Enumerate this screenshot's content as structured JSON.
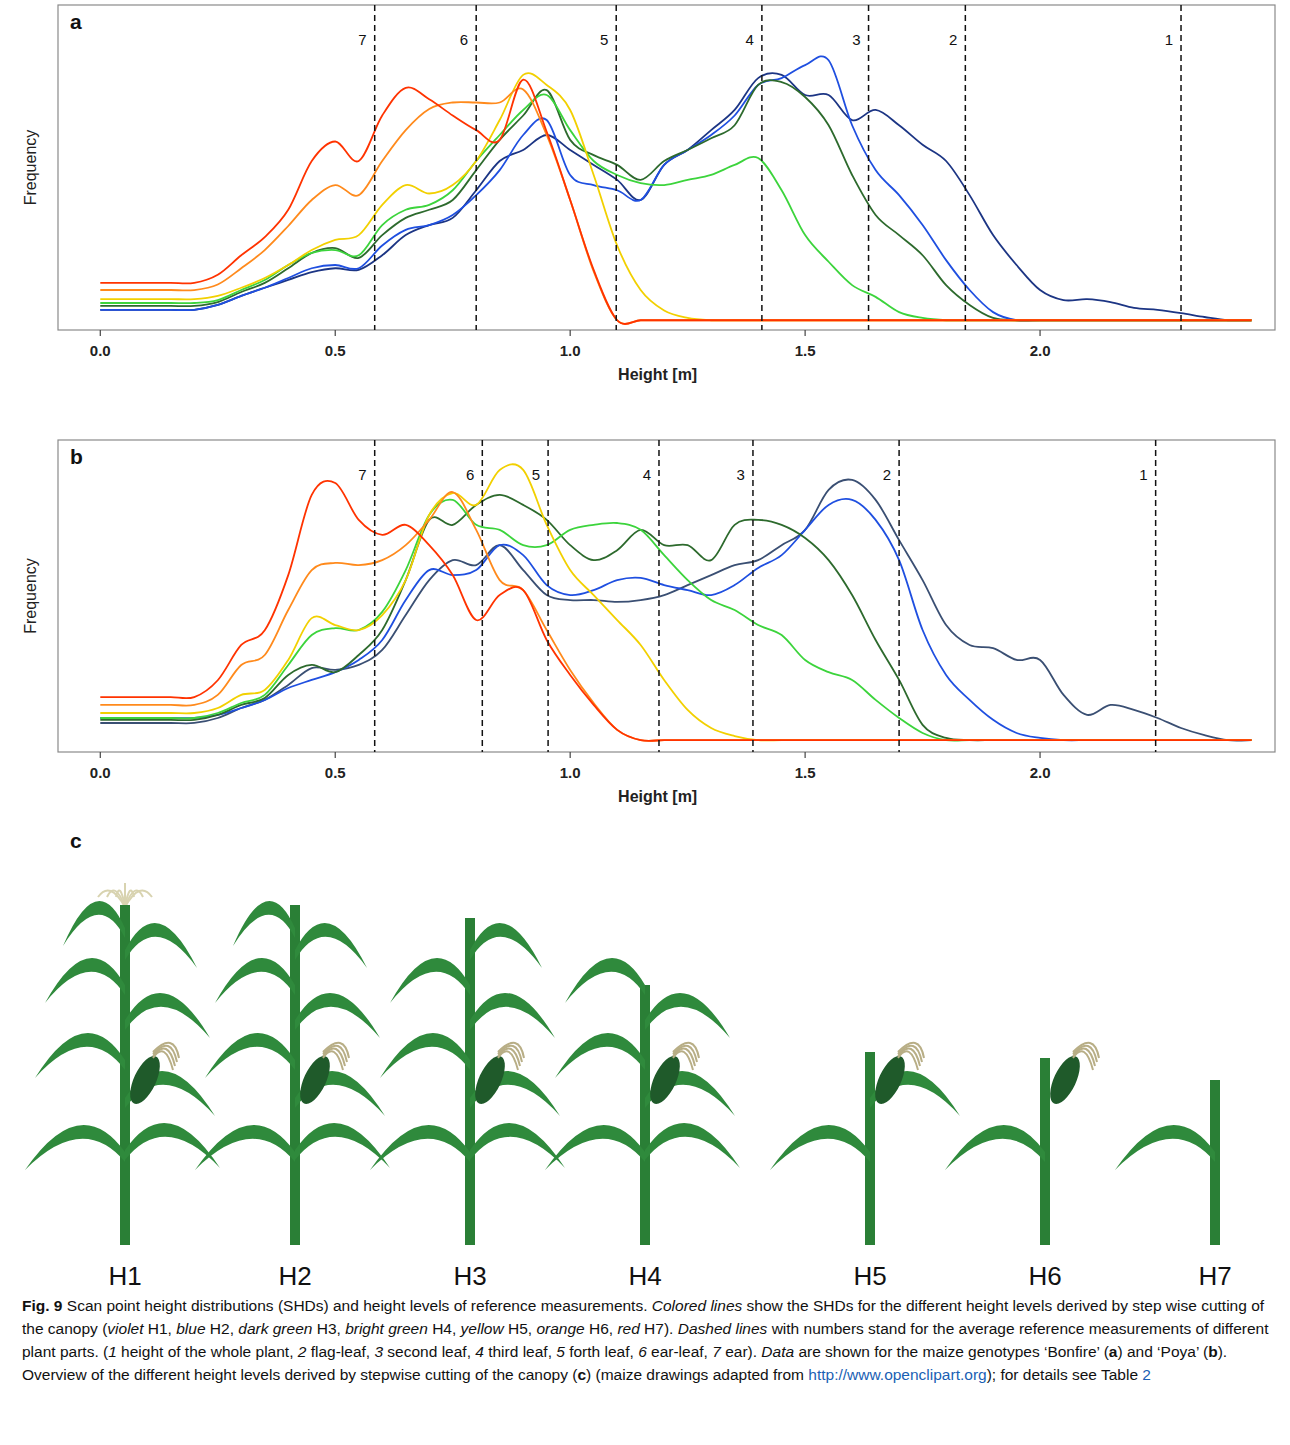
{
  "chart_data": [
    {
      "type": "line",
      "panel_label": "a",
      "x_label": "Height [m]",
      "y_label": "Frequency",
      "xlim": [
        -0.09,
        2.5
      ],
      "ylim": [
        0,
        100
      ],
      "tick_labels": "x",
      "xticks": [
        {
          "value": 0,
          "label": "0.0"
        },
        0.5,
        {
          "value": 1,
          "label": "1.0"
        },
        1.5,
        {
          "value": 2,
          "label": "2.0"
        }
      ],
      "x": [
        0,
        0.05,
        0.1,
        0.15,
        0.2,
        0.25,
        0.3,
        0.35,
        0.4,
        0.45,
        0.5,
        0.55,
        0.6,
        0.65,
        0.7,
        0.75,
        0.8,
        0.85,
        0.9,
        0.95,
        1,
        1.05,
        1.1,
        1.15,
        1.2,
        1.25,
        1.3,
        1.35,
        1.4,
        1.45,
        1.5,
        1.55,
        1.6,
        1.65,
        1.7,
        1.75,
        1.8,
        1.85,
        1.9,
        1.95,
        2,
        2.05,
        2.1,
        2.15,
        2.2,
        2.25,
        2.3,
        2.35,
        2.4,
        2.45
      ],
      "series": [
        {
          "color": "#1c3584",
          "values": [
            6.2,
            6.2,
            6.2,
            6.2,
            6.2,
            7.7,
            10.5,
            13,
            15.4,
            17.8,
            19,
            18.5,
            23,
            29.2,
            32.3,
            34.5,
            43,
            52,
            55.4,
            60,
            55.4,
            50.8,
            46.2,
            40,
            50.8,
            55.4,
            61.5,
            67.7,
            77.5,
            78.5,
            72.3,
            72.3,
            64.6,
            67.7,
            63,
            57,
            52,
            41.5,
            29.2,
            20,
            12.3,
            9.2,
            9.5,
            8.6,
            6.8,
            6.2,
            5.2,
            4,
            3,
            3
          ]
        },
        {
          "color": "#1f4fe0",
          "values": [
            6.2,
            6.2,
            6.2,
            6.2,
            6.2,
            7.7,
            10.5,
            13,
            16,
            19,
            20,
            19,
            26,
            30.8,
            32.3,
            35.4,
            41.5,
            49.2,
            60,
            64.6,
            47.7,
            44.6,
            43,
            40,
            50.8,
            55.4,
            60,
            66,
            75.4,
            77.5,
            81.5,
            83,
            63,
            49.2,
            41.5,
            32.3,
            21.5,
            12.3,
            5.5,
            3,
            3,
            3,
            3,
            3,
            3,
            3,
            3,
            3,
            3,
            3
          ]
        },
        {
          "color": "#2d6a2d",
          "values": [
            7.4,
            7.4,
            7.4,
            7.4,
            7.4,
            8.6,
            11.7,
            14.5,
            19,
            23.7,
            25.2,
            22.2,
            29.2,
            34.5,
            37,
            40,
            49.2,
            58.5,
            66,
            73.8,
            58.5,
            53.8,
            50.8,
            46.2,
            52,
            55.4,
            59,
            63,
            75.4,
            76.3,
            71.7,
            63,
            47.7,
            35.4,
            29.2,
            23,
            13.8,
            7.7,
            3.7,
            3,
            3,
            3,
            3,
            3,
            3,
            3,
            3,
            3,
            3,
            3
          ]
        },
        {
          "color": "#3cd43c",
          "values": [
            8.3,
            8.3,
            8.3,
            8.3,
            8.3,
            9.2,
            12.3,
            15.4,
            20,
            23.7,
            24.6,
            23,
            32.3,
            37,
            38.5,
            43,
            52,
            60,
            67.7,
            72.3,
            61.5,
            52,
            47.7,
            45.2,
            44.6,
            46.2,
            47.7,
            50.8,
            52.9,
            43,
            29.2,
            21,
            13.8,
            10.2,
            5.5,
            3.7,
            3,
            3,
            3,
            3,
            3,
            3,
            3,
            3,
            3,
            3,
            3,
            3,
            3,
            3
          ]
        },
        {
          "color": "#f2d000",
          "values": [
            9.5,
            9.5,
            9.5,
            9.5,
            9.5,
            10.5,
            13,
            16,
            20,
            24.6,
            27.7,
            29.2,
            38.5,
            44.6,
            42,
            44.6,
            52,
            64.6,
            78.5,
            75.4,
            67.7,
            47.7,
            26,
            12.3,
            6,
            3.7,
            3,
            3,
            3,
            3,
            3,
            3,
            3,
            3,
            3,
            3,
            3,
            3,
            3,
            3,
            3,
            3,
            3,
            3,
            3,
            3,
            3,
            3,
            3,
            3
          ]
        },
        {
          "color": "#ff8a1c",
          "values": [
            12.3,
            12.3,
            12.3,
            12.3,
            12.3,
            14,
            19,
            24.6,
            32,
            40,
            44.6,
            41.5,
            52,
            61.5,
            68,
            70,
            70,
            70,
            74,
            60,
            40,
            18,
            3,
            3,
            3,
            3,
            3,
            3,
            3,
            3,
            3,
            3,
            3,
            3,
            3,
            3,
            3,
            3,
            3,
            3,
            3,
            3,
            3,
            3,
            3,
            3,
            3,
            3,
            3,
            3
          ]
        },
        {
          "color": "#ff3300",
          "values": [
            14.5,
            14.5,
            14.5,
            14.5,
            14.5,
            17,
            23,
            28.6,
            37,
            52,
            58,
            52,
            66,
            74.5,
            71,
            66,
            61.5,
            58.5,
            77,
            61,
            40,
            18.5,
            3,
            3,
            3,
            3,
            3,
            3,
            3,
            3,
            3,
            3,
            3,
            3,
            3,
            3,
            3,
            3,
            3,
            3,
            3,
            3,
            3,
            3,
            3,
            3,
            3,
            3,
            3,
            3
          ]
        }
      ],
      "reference_lines": [
        {
          "x": 0.584,
          "label": "7"
        },
        {
          "x": 0.8,
          "label": "6"
        },
        {
          "x": 1.098,
          "label": "5"
        },
        {
          "x": 1.408,
          "label": "4"
        },
        {
          "x": 1.635,
          "label": "3"
        },
        {
          "x": 1.841,
          "label": "2"
        },
        {
          "x": 2.3,
          "label": "1"
        }
      ]
    },
    {
      "type": "line",
      "panel_label": "b",
      "x_label": "Height [m]",
      "y_label": "Frequency",
      "xlim": [
        -0.09,
        2.5
      ],
      "ylim": [
        0,
        100
      ],
      "tick_labels": "x",
      "xticks": [
        {
          "value": 0,
          "label": "0.0"
        },
        0.5,
        {
          "value": 1,
          "label": "1.0"
        },
        1.5,
        {
          "value": 2,
          "label": "2.0"
        }
      ],
      "x": [
        0,
        0.05,
        0.1,
        0.15,
        0.2,
        0.25,
        0.3,
        0.35,
        0.4,
        0.45,
        0.5,
        0.55,
        0.6,
        0.65,
        0.7,
        0.75,
        0.8,
        0.85,
        0.9,
        0.95,
        1,
        1.05,
        1.1,
        1.15,
        1.2,
        1.25,
        1.3,
        1.35,
        1.4,
        1.45,
        1.5,
        1.55,
        1.6,
        1.65,
        1.7,
        1.75,
        1.8,
        1.85,
        1.9,
        1.95,
        2,
        2.05,
        2.1,
        2.15,
        2.2,
        2.25,
        2.3,
        2.35,
        2.4,
        2.45
      ],
      "series": [
        {
          "color": "#3a4f73",
          "values": [
            9.3,
            9.3,
            9.3,
            9.3,
            9.3,
            10.9,
            14.1,
            16.7,
            21.5,
            26.9,
            26.3,
            27.9,
            32.7,
            43.9,
            55.1,
            61.5,
            59.9,
            66.3,
            58.3,
            50.3,
            48.7,
            48.7,
            48.1,
            48.7,
            50.3,
            53.5,
            56.7,
            59.9,
            61.5,
            66.3,
            71.2,
            84,
            87.2,
            80.8,
            67.9,
            55.1,
            40.7,
            34.3,
            33.3,
            29.5,
            29.5,
            18.3,
            11.9,
            15.1,
            13.5,
            10.9,
            7.7,
            5.4,
            3.8,
            3.8
          ]
        },
        {
          "color": "#1f4fe0",
          "values": [
            10.9,
            10.9,
            10.9,
            10.9,
            10.9,
            11.9,
            14.1,
            16.7,
            20.5,
            23.1,
            25.6,
            29.5,
            35.9,
            48.7,
            58.3,
            56.7,
            58.3,
            66.3,
            63.1,
            53.5,
            50.3,
            51.9,
            55.1,
            55.8,
            53.5,
            51.9,
            50.3,
            53.5,
            59,
            63.1,
            71.2,
            79.2,
            80.8,
            74.4,
            61.5,
            39.1,
            24.7,
            16.7,
            10.3,
            6.1,
            4.5,
            3.8,
            3.8,
            3.8,
            3.8,
            3.8,
            3.8,
            3.8,
            3.8,
            3.8
          ]
        },
        {
          "color": "#2d6a2d",
          "values": [
            10.3,
            10.3,
            10.3,
            10.3,
            10.3,
            11.9,
            15.1,
            17.3,
            24.7,
            27.9,
            25.6,
            31.1,
            39.1,
            55.1,
            74.4,
            72.8,
            79.2,
            82.4,
            79.2,
            74.4,
            66.3,
            61.5,
            64.7,
            71.2,
            66.3,
            66.3,
            61.5,
            72.8,
            74.4,
            72.8,
            68.6,
            61.5,
            50.3,
            35.9,
            23.1,
            8.7,
            4.5,
            3.8,
            3.8,
            3.8,
            3.8,
            3.8,
            3.8,
            3.8,
            3.8,
            3.8,
            3.8,
            3.8,
            3.8,
            3.8
          ]
        },
        {
          "color": "#3cd43c",
          "values": [
            10.9,
            10.9,
            10.9,
            10.9,
            10.9,
            12.5,
            15.7,
            18.3,
            27.9,
            37.5,
            39.7,
            39.1,
            44.9,
            58.3,
            76,
            80.8,
            72.8,
            71.2,
            66.3,
            66.3,
            71.2,
            72.8,
            73.4,
            71.2,
            63.1,
            55.1,
            48.7,
            45.5,
            40.7,
            37.5,
            29.5,
            25.6,
            23.1,
            16.7,
            10.9,
            6.1,
            3.8,
            3.8,
            3.8,
            3.8,
            3.8,
            3.8,
            3.8,
            3.8,
            3.8,
            3.8,
            3.8,
            3.8,
            3.8,
            3.8
          ]
        },
        {
          "color": "#f2d000",
          "values": [
            12.5,
            12.5,
            12.5,
            12.5,
            12.5,
            14.1,
            18.3,
            19.9,
            29.5,
            42.9,
            40.7,
            39.1,
            43.9,
            55.1,
            76,
            83,
            79.2,
            90.4,
            90.4,
            72.8,
            58.3,
            50.3,
            42.3,
            34.3,
            23.1,
            13.5,
            7.7,
            5.1,
            3.8,
            3.8,
            3.8,
            3.8,
            3.8,
            3.8,
            3.8,
            3.8,
            3.8,
            3.8,
            3.8,
            3.8,
            3.8,
            3.8,
            3.8,
            3.8,
            3.8,
            3.8,
            3.8,
            3.8,
            3.8,
            3.8
          ]
        },
        {
          "color": "#ff8a1c",
          "values": [
            15.1,
            15.1,
            15.1,
            15.1,
            15.1,
            18.3,
            27.9,
            31.1,
            45.5,
            58.3,
            60.6,
            59.9,
            61.5,
            66.3,
            74.4,
            83.3,
            71.2,
            55.1,
            51.9,
            39.1,
            26.3,
            15.7,
            7.1,
            3.8,
            3.8,
            3.8,
            3.8,
            3.8,
            3.8,
            3.8,
            3.8,
            3.8,
            3.8,
            3.8,
            3.8,
            3.8,
            3.8,
            3.8,
            3.8,
            3.8,
            3.8,
            3.8,
            3.8,
            3.8,
            3.8,
            3.8,
            3.8,
            3.8,
            3.8,
            3.8
          ]
        },
        {
          "color": "#ff3300",
          "values": [
            17.6,
            17.6,
            17.6,
            17.6,
            17.6,
            23,
            34.3,
            39,
            56.7,
            82.4,
            86.2,
            74.4,
            69.6,
            72.8,
            66.3,
            56.7,
            42.3,
            50.3,
            51.9,
            35.9,
            24.7,
            15.1,
            7.1,
            3.8,
            3.8,
            3.8,
            3.8,
            3.8,
            3.8,
            3.8,
            3.8,
            3.8,
            3.8,
            3.8,
            3.8,
            3.8,
            3.8,
            3.8,
            3.8,
            3.8,
            3.8,
            3.8,
            3.8,
            3.8,
            3.8,
            3.8,
            3.8,
            3.8,
            3.8,
            3.8
          ]
        }
      ],
      "reference_lines": [
        {
          "x": 0.584,
          "label": "7"
        },
        {
          "x": 0.813,
          "label": "6"
        },
        {
          "x": 0.953,
          "label": "5"
        },
        {
          "x": 1.189,
          "label": "4"
        },
        {
          "x": 1.389,
          "label": "3"
        },
        {
          "x": 1.7,
          "label": "2"
        },
        {
          "x": 2.246,
          "label": "1"
        }
      ]
    }
  ],
  "panel_c": {
    "panel_label": "c",
    "plants": [
      "H1",
      "H2",
      "H3",
      "H4",
      "H5",
      "H6",
      "H7"
    ]
  },
  "caption": [
    {
      "text": "Fig. 9",
      "style": "bold"
    },
    {
      "text": "  Scan point height distributions (SHDs) and height levels of reference measurements. ",
      "style": "normal"
    },
    {
      "text": "Colored lines",
      "style": "italic"
    },
    {
      "text": " show the SHDs for the different height levels derived by step wise cutting of the canopy (",
      "style": "normal"
    },
    {
      "text": "violet",
      "style": "italic"
    },
    {
      "text": " H1, ",
      "style": "normal"
    },
    {
      "text": "blue",
      "style": "italic"
    },
    {
      "text": " H2, ",
      "style": "normal"
    },
    {
      "text": "dark green",
      "style": "italic"
    },
    {
      "text": " H3, ",
      "style": "normal"
    },
    {
      "text": "bright green",
      "style": "italic"
    },
    {
      "text": " H4, ",
      "style": "normal"
    },
    {
      "text": "yellow",
      "style": "italic"
    },
    {
      "text": " H5, ",
      "style": "normal"
    },
    {
      "text": "orange",
      "style": "italic"
    },
    {
      "text": " H6, ",
      "style": "normal"
    },
    {
      "text": "red",
      "style": "italic"
    },
    {
      "text": " H7). ",
      "style": "normal"
    },
    {
      "text": "Dashed lines",
      "style": "italic"
    },
    {
      "text": " with numbers stand for the average reference measurements of different plant parts. (",
      "style": "normal"
    },
    {
      "text": "1",
      "style": "italic"
    },
    {
      "text": " height of the whole plant, ",
      "style": "normal"
    },
    {
      "text": "2",
      "style": "italic"
    },
    {
      "text": " flag-leaf, ",
      "style": "normal"
    },
    {
      "text": "3",
      "style": "italic"
    },
    {
      "text": " second leaf, ",
      "style": "normal"
    },
    {
      "text": "4",
      "style": "italic"
    },
    {
      "text": " third leaf, ",
      "style": "normal"
    },
    {
      "text": "5",
      "style": "italic"
    },
    {
      "text": " forth leaf, ",
      "style": "normal"
    },
    {
      "text": "6",
      "style": "italic"
    },
    {
      "text": " ear-leaf, ",
      "style": "normal"
    },
    {
      "text": "7",
      "style": "italic"
    },
    {
      "text": " ear). ",
      "style": "normal"
    },
    {
      "text": "Data",
      "style": "italic"
    },
    {
      "text": " are shown for the maize genotypes ‘Bonfire’ (",
      "style": "normal"
    },
    {
      "text": "a",
      "style": "bold"
    },
    {
      "text": ") and ‘Poya’ (",
      "style": "normal"
    },
    {
      "text": "b",
      "style": "bold"
    },
    {
      "text": "). Overview of the different height levels derived by stepwise cutting of the canopy (",
      "style": "normal"
    },
    {
      "text": "c",
      "style": "bold"
    },
    {
      "text": ") (maize drawings adapted from ",
      "style": "normal"
    },
    {
      "text": "http://www.openclipart.org",
      "style": "link"
    },
    {
      "text": "); for details see Table ",
      "style": "normal"
    },
    {
      "text": "2",
      "style": "link"
    }
  ]
}
